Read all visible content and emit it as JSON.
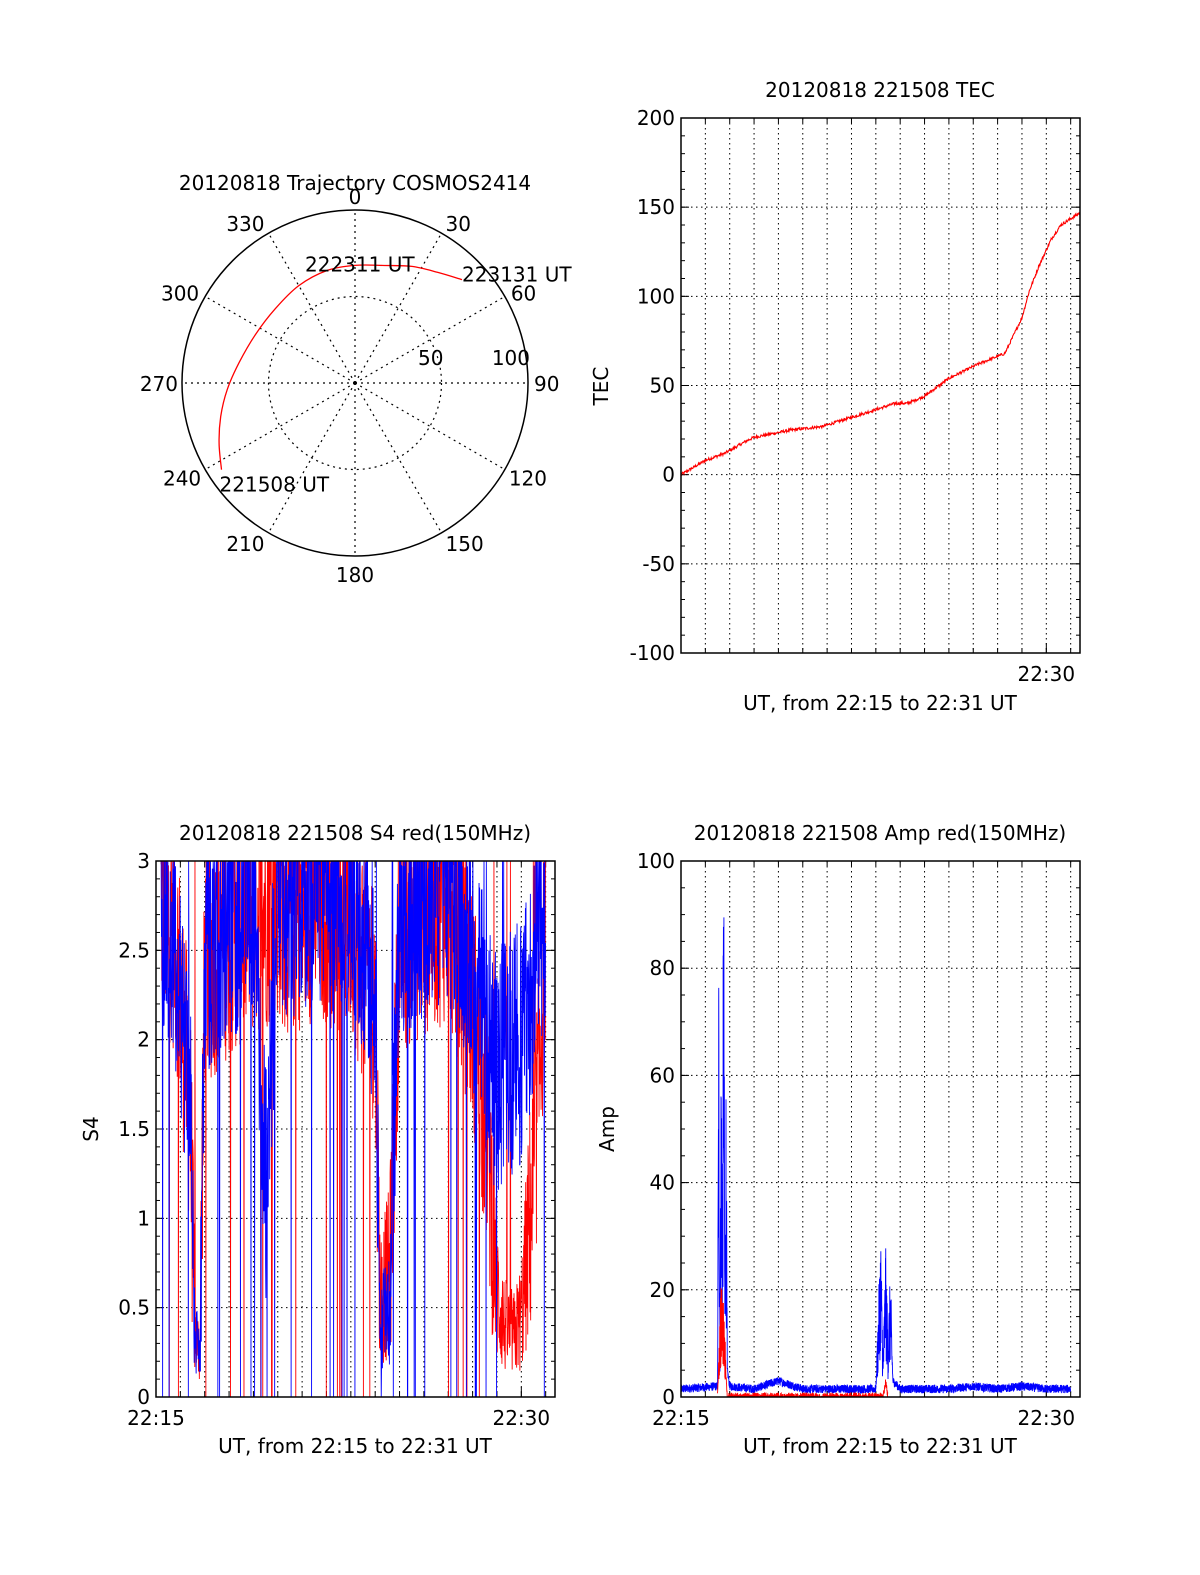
{
  "chart_data": [
    {
      "id": "polar",
      "type": "polar-trajectory",
      "title": "20120818 Trajectory COSMOS2414",
      "azimuth_labels": [
        "0",
        "30",
        "60",
        "90",
        "120",
        "150",
        "180",
        "210",
        "240",
        "270",
        "300",
        "330"
      ],
      "radial_labels": [
        "50",
        "100"
      ],
      "radial_label_values": [
        50,
        100
      ],
      "radial_max": 100,
      "trajectory_color": "#ff0000",
      "trajectory": [
        {
          "az": 237,
          "r": 92
        },
        {
          "az": 246,
          "r": 86
        },
        {
          "az": 256,
          "r": 80
        },
        {
          "az": 267,
          "r": 74
        },
        {
          "az": 280,
          "r": 68
        },
        {
          "az": 296,
          "r": 64
        },
        {
          "az": 313,
          "r": 63
        },
        {
          "az": 330,
          "r": 65
        },
        {
          "az": 346,
          "r": 67
        },
        {
          "az": 0,
          "r": 68
        },
        {
          "az": 14,
          "r": 70
        },
        {
          "az": 26,
          "r": 75
        },
        {
          "az": 37,
          "r": 80
        },
        {
          "az": 46,
          "r": 86
        }
      ],
      "annotations": [
        {
          "text": "221508 UT",
          "az": 237,
          "r": 92
        },
        {
          "text": "222311 UT",
          "az": 0,
          "r": 68
        },
        {
          "text": "223131 UT",
          "az": 46,
          "r": 86
        }
      ]
    },
    {
      "id": "tec",
      "type": "line",
      "title": "20120818 221508 TEC",
      "xlabel": "UT, from 22:15 to 22:31 UT",
      "ylabel": "TEC",
      "xlim": [
        0,
        16.383
      ],
      "ylim": [
        -100,
        200
      ],
      "yticks": [
        -100,
        -50,
        0,
        50,
        100,
        150,
        200
      ],
      "ytick_labels": [
        "-100",
        "-50",
        "0",
        "50",
        "100",
        "150",
        "200"
      ],
      "xtick_labels": [
        "22:30"
      ],
      "xtick_values": [
        15
      ],
      "grid": true,
      "series": [
        {
          "color": "#ff0000",
          "x": [
            0,
            1,
            1.8,
            2.7,
            3,
            4.5,
            5.8,
            7.2,
            8.8,
            9.3,
            10,
            11,
            12.2,
            13.3,
            14,
            14.3,
            14.7,
            15.2,
            15.6,
            16.4
          ],
          "y": [
            0,
            8,
            12,
            19,
            21,
            25,
            27,
            33,
            40,
            40,
            44,
            54,
            62,
            68,
            88,
            103,
            117,
            132,
            140,
            147
          ]
        }
      ]
    },
    {
      "id": "s4",
      "type": "line",
      "title": "20120818 221508 S4 red(150MHz)",
      "xlabel": "UT, from 22:15 to 22:31 UT",
      "ylabel": "S4",
      "xlim": [
        0,
        16.383
      ],
      "ylim": [
        0,
        3
      ],
      "yticks": [
        0,
        0.5,
        1,
        1.5,
        2,
        2.5,
        3
      ],
      "ytick_labels": [
        "0",
        "0.5",
        "1",
        "1.5",
        "2",
        "2.5",
        "3"
      ],
      "xtick_labels": [
        "22:15",
        "22:30"
      ],
      "xtick_values": [
        0,
        15
      ],
      "grid": true,
      "series": [
        {
          "color": "#ff0000",
          "x": [
            0.2,
            0.8,
            1.4,
            1.6,
            1.8,
            2.0,
            3,
            4,
            5,
            5.5,
            6.5,
            8,
            9,
            9.2,
            9.6,
            10,
            11,
            12,
            13,
            13.6,
            14,
            14.3,
            14.7,
            15,
            15.5,
            16
          ],
          "y": [
            2.8,
            2.6,
            1.6,
            0.35,
            0.25,
            2.4,
            2.6,
            2.7,
            2.8,
            2.7,
            2.8,
            2.7,
            2.2,
            0.55,
            0.7,
            2.6,
            2.7,
            2.8,
            2.2,
            1.5,
            0.6,
            0.4,
            0.35,
            0.45,
            1.2,
            2.6
          ]
        },
        {
          "color": "#0000ff",
          "x": [
            0.2,
            0.8,
            1.4,
            1.6,
            1.8,
            2.0,
            3,
            4,
            4.5,
            5,
            5.5,
            6.5,
            8,
            9,
            9.2,
            9.6,
            10,
            11,
            12,
            13,
            13.6,
            14,
            14.5,
            15,
            15.5,
            16
          ],
          "y": [
            2.8,
            2.5,
            1.8,
            0.35,
            0.2,
            2.5,
            2.7,
            2.8,
            1.2,
            2.9,
            2.8,
            2.9,
            2.8,
            2.3,
            0.35,
            0.55,
            2.7,
            2.8,
            2.9,
            2.4,
            2.0,
            1.8,
            1.9,
            2.0,
            2.4,
            2.8
          ]
        }
      ]
    },
    {
      "id": "amp",
      "type": "line",
      "title": "20120818 221508 Amp red(150MHz)",
      "xlabel": "UT, from 22:15 to 22:31 UT",
      "ylabel": "Amp",
      "xlim": [
        0,
        16.383
      ],
      "ylim": [
        0,
        100
      ],
      "yticks": [
        0,
        20,
        40,
        60,
        80,
        100
      ],
      "ytick_labels": [
        "0",
        "20",
        "40",
        "60",
        "80",
        "100"
      ],
      "xtick_labels": [
        "22:15",
        "22:30"
      ],
      "xtick_values": [
        0,
        15
      ],
      "grid": true,
      "series": [
        {
          "color": "#0000ff",
          "x": [
            0,
            1.5,
            1.55,
            1.6,
            1.65,
            1.7,
            1.75,
            1.8,
            1.85,
            1.9,
            2.0,
            3,
            4,
            5,
            6,
            7,
            8,
            8.2,
            8.3,
            8.4,
            8.5,
            8.6,
            8.7,
            9,
            10,
            11,
            12,
            13,
            14,
            15,
            16
          ],
          "y": [
            1.5,
            2,
            55,
            10,
            48,
            20,
            73,
            15,
            40,
            5,
            2,
            1.5,
            3,
            1.5,
            1.5,
            1.5,
            1.5,
            20,
            5,
            18,
            8,
            15,
            3,
            1.5,
            1.5,
            1.5,
            2,
            1.5,
            2,
            1.5,
            1.5
          ]
        },
        {
          "color": "#ff0000",
          "x": [
            1.5,
            1.6,
            1.7,
            1.8,
            1.9,
            8.3,
            8.4,
            8.5
          ],
          "y": [
            0,
            12,
            14,
            8,
            0,
            0,
            3,
            0
          ]
        }
      ]
    }
  ]
}
